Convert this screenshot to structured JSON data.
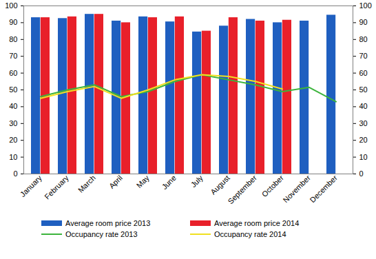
{
  "chart_data": {
    "type": "bar",
    "categories": [
      "January",
      "February",
      "March",
      "April",
      "May",
      "June",
      "July",
      "August",
      "September",
      "October",
      "November",
      "December"
    ],
    "series": [
      {
        "name": "Average room price 2013",
        "type": "bar",
        "color": "#1f5fc0",
        "values": [
          93,
          92.5,
          95,
          91,
          93.5,
          90.5,
          84.5,
          88,
          92,
          90,
          91,
          94.5
        ]
      },
      {
        "name": "Average room price 2014",
        "type": "bar",
        "color": "#e8202a",
        "values": [
          93,
          93.5,
          95,
          90,
          93,
          93.5,
          85,
          93,
          91,
          91.5,
          null,
          null
        ]
      },
      {
        "name": "Occupancy rate 2013",
        "type": "line",
        "axis": "y2",
        "color": "#3cb43c",
        "values": [
          46,
          50,
          53,
          46,
          49,
          55,
          59,
          56,
          53,
          49,
          51.5,
          43
        ]
      },
      {
        "name": "Occupancy rate 2014",
        "type": "line",
        "axis": "y2",
        "color": "#f0e020",
        "values": [
          45,
          49,
          52,
          45,
          50,
          56,
          59,
          58,
          55,
          50.5,
          null,
          null
        ]
      }
    ],
    "ylim": [
      0,
      100
    ],
    "yticks": [
      0,
      10,
      20,
      30,
      40,
      50,
      60,
      70,
      80,
      90,
      100
    ],
    "y2lim": [
      0,
      100
    ],
    "y2ticks": [
      0,
      10,
      20,
      30,
      40,
      50,
      60,
      70,
      80,
      90,
      100
    ],
    "grid": false,
    "legend": "bottom"
  }
}
